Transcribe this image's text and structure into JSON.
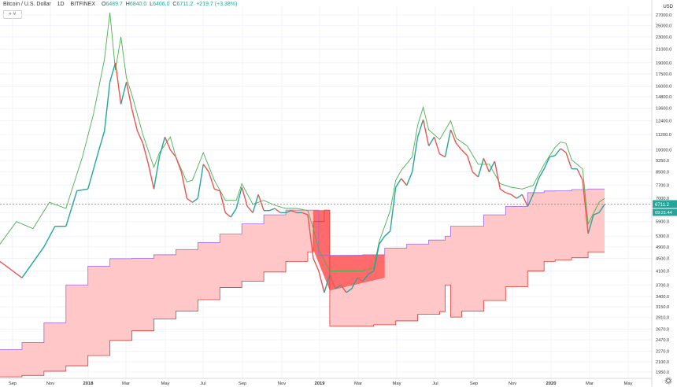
{
  "header": {
    "symbol": "Bitcoin / U.S. Dollar",
    "interval": "1D",
    "exchange": "BITFINEX",
    "open_label": "O",
    "open": "6489.7",
    "high_label": "H",
    "high": "6840.0",
    "low_label": "L",
    "low": "6406.0",
    "close_label": "C",
    "close": "6711.2",
    "change": "+219.7 (+3.38%)"
  },
  "toolbar": {
    "collapse_label": "» ∨"
  },
  "currency": "USD",
  "price_tag": {
    "value": "6711.2",
    "countdown": "09:21:44"
  },
  "colors": {
    "up": "#26a69a",
    "down": "#ef5350",
    "upper_line": "#4caf50",
    "cloud_fill": "#ffc7c7",
    "cloud_dark": "#ff6b6b",
    "upper_band": "#9c6ade",
    "lower_band": "#e53935"
  },
  "chart_data": {
    "type": "line",
    "y_scale": "log",
    "y_ticks": [
      "27000.0",
      "25000.0",
      "23000.0",
      "21000.0",
      "19000.0",
      "17500.0",
      "16000.0",
      "14800.0",
      "13600.0",
      "12400.0",
      "11200.0",
      "10000.0",
      "9250.0",
      "8500.0",
      "7700.0",
      "7000.0",
      "6300.0",
      "5900.0",
      "5300.0",
      "4900.0",
      "4500.0",
      "4100.0",
      "3700.0",
      "3400.0",
      "3150.0",
      "2910.0",
      "2670.0",
      "2470.0",
      "2270.0",
      "2100.0",
      "1950.0"
    ],
    "x_ticks": [
      "Sep",
      "Nov",
      "2018",
      "Mar",
      "May",
      "Jul",
      "Sep",
      "Nov",
      "2019",
      "Mar",
      "May",
      "Jul",
      "Sep",
      "Nov",
      "2020",
      "Mar",
      "May"
    ],
    "series": [
      {
        "key": "price",
        "points": [
          [
            0,
            4400
          ],
          [
            4,
            3900
          ],
          [
            8,
            4900
          ],
          [
            10,
            5700
          ],
          [
            12,
            5700
          ],
          [
            14,
            7400
          ],
          [
            16,
            7500
          ],
          [
            18,
            10000
          ],
          [
            19,
            11500
          ],
          [
            20,
            16500
          ],
          [
            21,
            19000
          ],
          [
            22,
            14000
          ],
          [
            23,
            16500
          ],
          [
            24,
            13500
          ],
          [
            25,
            11500
          ],
          [
            26,
            10500
          ],
          [
            27,
            9000
          ],
          [
            28,
            7500
          ],
          [
            29,
            9500
          ],
          [
            30,
            11000
          ],
          [
            31,
            10000
          ],
          [
            32,
            9500
          ],
          [
            33,
            8500
          ],
          [
            34,
            7000
          ],
          [
            35,
            6800
          ],
          [
            36,
            7000
          ],
          [
            37,
            9000
          ],
          [
            38,
            8500
          ],
          [
            39,
            7500
          ],
          [
            40,
            7400
          ],
          [
            41,
            6300
          ],
          [
            42,
            6100
          ],
          [
            43,
            6500
          ],
          [
            44,
            7600
          ],
          [
            45,
            6600
          ],
          [
            46,
            6300
          ],
          [
            47,
            7200
          ],
          [
            48,
            6400
          ],
          [
            49,
            6400
          ],
          [
            50,
            6500
          ],
          [
            51,
            6300
          ],
          [
            52,
            6300
          ],
          [
            53,
            6400
          ],
          [
            54,
            6300
          ],
          [
            55,
            6300
          ],
          [
            56,
            6200
          ],
          [
            57,
            4500
          ],
          [
            58,
            4100
          ],
          [
            59,
            3500
          ],
          [
            60,
            4000
          ],
          [
            61,
            3600
          ],
          [
            62,
            3700
          ],
          [
            63,
            3500
          ],
          [
            64,
            3600
          ],
          [
            65,
            3900
          ],
          [
            66,
            3800
          ],
          [
            67,
            4000
          ],
          [
            68,
            4100
          ],
          [
            69,
            5000
          ],
          [
            70,
            5300
          ],
          [
            71,
            5500
          ],
          [
            72,
            7600
          ],
          [
            73,
            8100
          ],
          [
            74,
            7700
          ],
          [
            75,
            8500
          ],
          [
            76,
            11000
          ],
          [
            77,
            12500
          ],
          [
            78,
            10300
          ],
          [
            79,
            11000
          ],
          [
            80,
            9700
          ],
          [
            81,
            9500
          ],
          [
            82,
            11600
          ],
          [
            83,
            10500
          ],
          [
            84,
            10000
          ],
          [
            85,
            9600
          ],
          [
            86,
            8500
          ],
          [
            87,
            8200
          ],
          [
            88,
            9400
          ],
          [
            89,
            8500
          ],
          [
            90,
            9200
          ],
          [
            91,
            7500
          ],
          [
            92,
            7300
          ],
          [
            93,
            7200
          ],
          [
            94,
            7000
          ],
          [
            95,
            7200
          ],
          [
            96,
            6600
          ],
          [
            97,
            7200
          ],
          [
            98,
            8100
          ],
          [
            99,
            8700
          ],
          [
            100,
            9500
          ],
          [
            101,
            9600
          ],
          [
            102,
            10100
          ],
          [
            103,
            9800
          ],
          [
            104,
            8700
          ],
          [
            105,
            8700
          ],
          [
            106,
            8000
          ],
          [
            107,
            5400
          ],
          [
            108,
            6200
          ],
          [
            109,
            6300
          ],
          [
            110,
            6700
          ]
        ]
      },
      {
        "key": "upper",
        "points": [
          [
            0,
            5000
          ],
          [
            3,
            5900
          ],
          [
            6,
            5600
          ],
          [
            9,
            6800
          ],
          [
            12,
            6500
          ],
          [
            15,
            9500
          ],
          [
            17,
            13000
          ],
          [
            19,
            19500
          ],
          [
            20,
            27500
          ],
          [
            21,
            18000
          ],
          [
            22,
            23000
          ],
          [
            23,
            17000
          ],
          [
            24,
            15000
          ],
          [
            26,
            11200
          ],
          [
            28,
            8800
          ],
          [
            29,
            9800
          ],
          [
            31,
            11000
          ],
          [
            32,
            9500
          ],
          [
            34,
            7900
          ],
          [
            35,
            8000
          ],
          [
            37,
            9800
          ],
          [
            39,
            8000
          ],
          [
            41,
            6900
          ],
          [
            43,
            6900
          ],
          [
            44,
            7800
          ],
          [
            46,
            6700
          ],
          [
            48,
            6900
          ],
          [
            50,
            6650
          ],
          [
            52,
            6500
          ],
          [
            54,
            6500
          ],
          [
            56,
            6400
          ],
          [
            57,
            5600
          ],
          [
            58,
            4800
          ],
          [
            60,
            4100
          ],
          [
            62,
            4100
          ],
          [
            64,
            4100
          ],
          [
            66,
            4100
          ],
          [
            68,
            4200
          ],
          [
            69,
            5100
          ],
          [
            70,
            5700
          ],
          [
            71,
            6400
          ],
          [
            72,
            8000
          ],
          [
            73,
            8600
          ],
          [
            75,
            9500
          ],
          [
            76,
            12000
          ],
          [
            77,
            13700
          ],
          [
            78,
            11600
          ],
          [
            80,
            10800
          ],
          [
            82,
            12400
          ],
          [
            83,
            10900
          ],
          [
            85,
            10300
          ],
          [
            87,
            9000
          ],
          [
            89,
            9000
          ],
          [
            91,
            7800
          ],
          [
            93,
            7600
          ],
          [
            95,
            7500
          ],
          [
            97,
            7700
          ],
          [
            99,
            9000
          ],
          [
            101,
            10200
          ],
          [
            102,
            10600
          ],
          [
            103,
            10500
          ],
          [
            104,
            9300
          ],
          [
            106,
            8700
          ],
          [
            107,
            5800
          ],
          [
            109,
            6800
          ],
          [
            110,
            7000
          ]
        ]
      },
      {
        "key": "cloud_top",
        "points": [
          [
            0,
            2300
          ],
          [
            4,
            2420
          ],
          [
            8,
            2800
          ],
          [
            12,
            3700
          ],
          [
            16,
            4250
          ],
          [
            20,
            4490
          ],
          [
            24,
            4500
          ],
          [
            28,
            4620
          ],
          [
            32,
            4800
          ],
          [
            36,
            5050
          ],
          [
            40,
            5380
          ],
          [
            44,
            5800
          ],
          [
            48,
            6200
          ],
          [
            52,
            6420
          ],
          [
            56,
            6420
          ],
          [
            57,
            6420
          ],
          [
            58,
            4600
          ],
          [
            62,
            4600
          ],
          [
            66,
            4620
          ],
          [
            70,
            4850
          ],
          [
            74,
            5000
          ],
          [
            78,
            5150
          ],
          [
            81,
            5300
          ],
          [
            82,
            5700
          ],
          [
            85,
            5700
          ],
          [
            88,
            6200
          ],
          [
            92,
            6600
          ],
          [
            96,
            7300
          ],
          [
            99,
            7390
          ],
          [
            101,
            7400
          ],
          [
            104,
            7470
          ],
          [
            107,
            7500
          ],
          [
            110,
            7500
          ]
        ]
      },
      {
        "key": "cloud_bottom",
        "points": [
          [
            0,
            1880
          ],
          [
            4,
            1900
          ],
          [
            8,
            1960
          ],
          [
            12,
            2040
          ],
          [
            16,
            2200
          ],
          [
            20,
            2460
          ],
          [
            24,
            2640
          ],
          [
            28,
            2880
          ],
          [
            32,
            3050
          ],
          [
            36,
            3320
          ],
          [
            40,
            3630
          ],
          [
            44,
            3800
          ],
          [
            48,
            4070
          ],
          [
            52,
            4400
          ],
          [
            56,
            4720
          ],
          [
            57,
            5900
          ],
          [
            59,
            6420
          ],
          [
            60,
            2730
          ],
          [
            64,
            2730
          ],
          [
            68,
            2760
          ],
          [
            72,
            2840
          ],
          [
            76,
            2980
          ],
          [
            80,
            3040
          ],
          [
            81,
            3700
          ],
          [
            82,
            2920
          ],
          [
            84,
            3050
          ],
          [
            88,
            3300
          ],
          [
            92,
            3650
          ],
          [
            96,
            4100
          ],
          [
            99,
            4400
          ],
          [
            101,
            4450
          ],
          [
            104,
            4520
          ],
          [
            107,
            4720
          ],
          [
            110,
            4720
          ]
        ]
      }
    ]
  }
}
